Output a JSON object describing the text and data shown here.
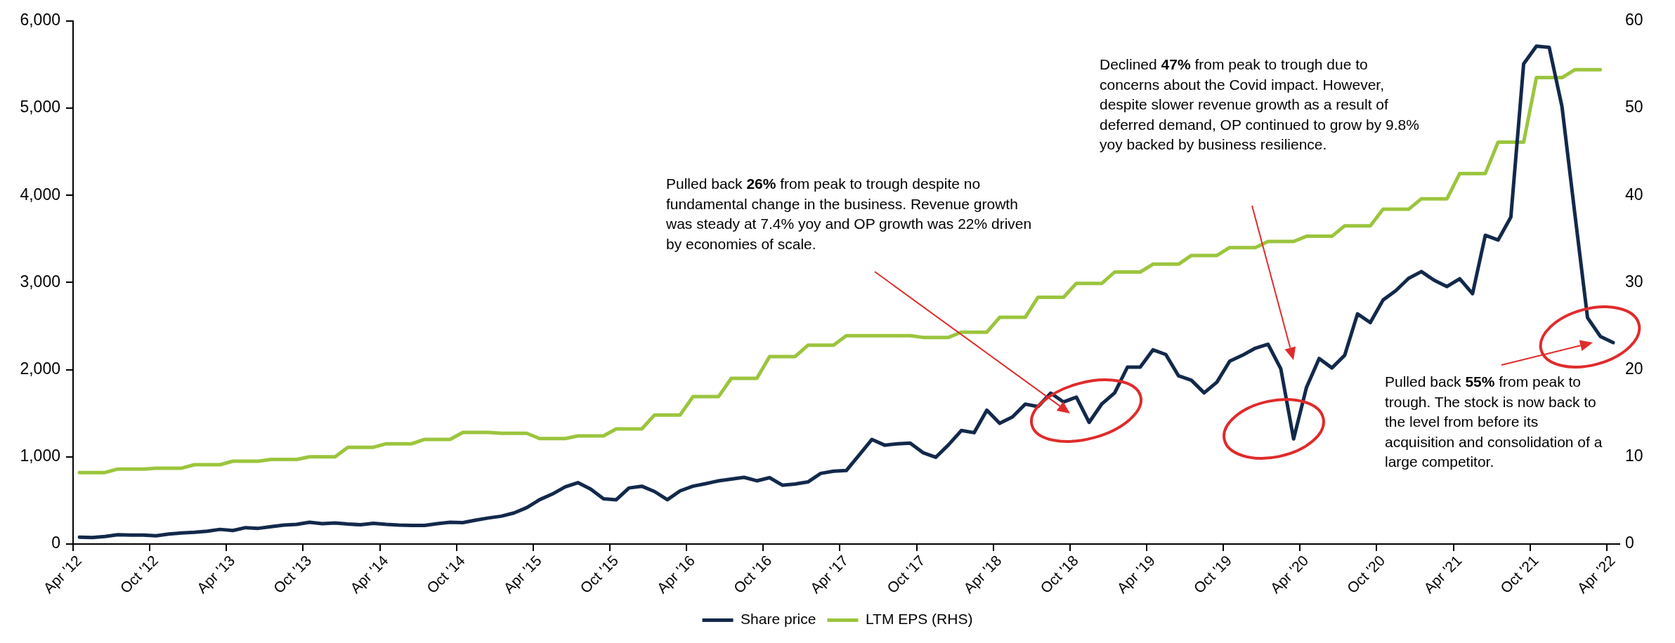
{
  "chart_data": {
    "type": "line",
    "categories": [
      "Apr '12",
      null,
      null,
      null,
      null,
      null,
      "Oct '12",
      null,
      null,
      null,
      null,
      null,
      "Apr '13",
      null,
      null,
      null,
      null,
      null,
      "Oct '13",
      null,
      null,
      null,
      null,
      null,
      "Apr '14",
      null,
      null,
      null,
      null,
      null,
      "Oct '14",
      null,
      null,
      null,
      null,
      null,
      "Apr '15",
      null,
      null,
      null,
      null,
      null,
      "Oct '15",
      null,
      null,
      null,
      null,
      null,
      "Apr '16",
      null,
      null,
      null,
      null,
      null,
      "Oct '16",
      null,
      null,
      null,
      null,
      null,
      "Apr '17",
      null,
      null,
      null,
      null,
      null,
      "Oct '17",
      null,
      null,
      null,
      null,
      null,
      "Apr '18",
      null,
      null,
      null,
      null,
      null,
      "Oct '18",
      null,
      null,
      null,
      null,
      null,
      "Apr '19",
      null,
      null,
      null,
      null,
      null,
      "Oct '19",
      null,
      null,
      null,
      null,
      null,
      "Apr '20",
      null,
      null,
      null,
      null,
      null,
      "Oct '20",
      null,
      null,
      null,
      null,
      null,
      "Apr '21",
      null,
      null,
      null,
      null,
      null,
      "Oct '21",
      null,
      null,
      null,
      null,
      null,
      "Apr '22"
    ],
    "series": [
      {
        "name": "Share price",
        "color": "#13294b",
        "values": [
          78,
          74,
          86,
          106,
          102,
          102,
          94,
          115,
          127,
          135,
          147,
          168,
          155,
          188,
          180,
          200,
          217,
          225,
          250,
          233,
          241,
          229,
          221,
          237,
          225,
          217,
          213,
          213,
          233,
          250,
          246,
          274,
          299,
          319,
          356,
          418,
          508,
          573,
          655,
          704,
          630,
          520,
          508,
          643,
          663,
          602,
          508,
          610,
          663,
          692,
          725,
          745,
          765,
          725,
          761,
          675,
          688,
          712,
          810,
          835,
          843,
          1019,
          1199,
          1134,
          1150,
          1158,
          1048,
          995,
          1138,
          1302,
          1277,
          1535,
          1384,
          1457,
          1605,
          1576,
          1731,
          1629,
          1685,
          1395,
          1608,
          1734,
          2029,
          2029,
          2228,
          2174,
          1929,
          1879,
          1734,
          1857,
          2097,
          2165,
          2246,
          2291,
          2010,
          1205,
          1793,
          2128,
          2020,
          2165,
          2640,
          2540,
          2799,
          2907,
          3048,
          3125,
          3025,
          2953,
          3043,
          2871,
          3541,
          3487,
          3750,
          5507,
          5710,
          5697,
          5017,
          3795,
          2595,
          2382,
          2310
        ]
      },
      {
        "name": "LTM EPS (RHS)",
        "color": "#9bc53d",
        "axis": "y2",
        "values": [
          8.2,
          8.2,
          8.2,
          8.6,
          8.6,
          8.6,
          8.7,
          8.7,
          8.7,
          9.1,
          9.1,
          9.1,
          9.5,
          9.5,
          9.5,
          9.7,
          9.7,
          9.7,
          10.0,
          10.0,
          10.0,
          11.1,
          11.1,
          11.1,
          11.5,
          11.5,
          11.5,
          12.0,
          12.0,
          12.0,
          12.8,
          12.8,
          12.8,
          12.7,
          12.7,
          12.7,
          12.1,
          12.1,
          12.1,
          12.4,
          12.4,
          12.4,
          13.2,
          13.2,
          13.2,
          14.8,
          14.8,
          14.8,
          16.9,
          16.9,
          16.9,
          19.0,
          19.0,
          19.0,
          21.5,
          21.5,
          21.5,
          22.8,
          22.8,
          22.8,
          23.9,
          23.9,
          23.9,
          23.9,
          23.9,
          23.9,
          23.7,
          23.7,
          23.7,
          24.3,
          24.3,
          24.3,
          26.0,
          26.0,
          26.0,
          28.3,
          28.3,
          28.3,
          29.9,
          29.9,
          29.9,
          31.2,
          31.2,
          31.2,
          32.1,
          32.1,
          32.1,
          33.1,
          33.1,
          33.1,
          34.0,
          34.0,
          34.0,
          34.7,
          34.7,
          34.7,
          35.3,
          35.3,
          35.3,
          36.5,
          36.5,
          36.5,
          38.4,
          38.4,
          38.4,
          39.6,
          39.6,
          39.6,
          42.5,
          42.5,
          42.5,
          46.1,
          46.1,
          46.1,
          53.5,
          53.5,
          53.5,
          54.4,
          54.4,
          54.4,
          null
        ]
      }
    ],
    "ylim": [
      0,
      6000
    ],
    "yticks": [
      0,
      {
        "value": 1000,
        "label": "1,000"
      },
      {
        "value": 2000,
        "label": "2,000"
      },
      {
        "value": 3000,
        "label": "3,000"
      },
      {
        "value": 4000,
        "label": "4,000"
      },
      {
        "value": 5000,
        "label": "5,000"
      },
      {
        "value": 6000,
        "label": "6,000"
      }
    ],
    "y2lim": [
      0,
      60
    ],
    "y2ticks": [
      0,
      10,
      20,
      30,
      40,
      50,
      60
    ],
    "grid": false,
    "legend": "bottom",
    "marker": "none",
    "line_style": "solid",
    "annotations": [
      "Pulled back 26% from peak to trough despite no fundamental change in the business. Revenue growth was steady at 7.4% yoy and OP growth was 22% driven by economies of scale.",
      "Declined 47% from peak to trough due to concerns about the Covid impact. However, despite slower revenue growth as a result of deferred demand, OP continued to grow by 9.8% yoy backed by business resilience.",
      "Pulled back 55% from peak to trough. The stock is now back to the level from before its acquisition and consolidation of a large competitor."
    ]
  }
}
